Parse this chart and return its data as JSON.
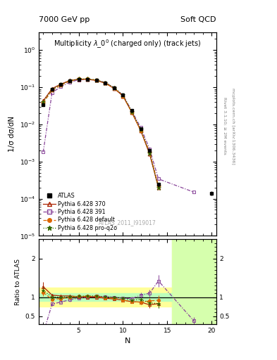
{
  "title_left": "7000 GeV pp",
  "title_right": "Soft QCD",
  "main_title": "Multiplicity $\\lambda\\_0^0$ (charged only) (track jets)",
  "watermark": "ATLAS_2011_I919017",
  "right_label_top": "Rivet 3.1.10; ≥ 2M events",
  "right_label_bot": "mcplots.cern.ch [arXiv:1306.3436]",
  "xlabel": "N",
  "ylabel_main": "1/σ dσ/dN",
  "ylabel_ratio": "Ratio to ATLAS",
  "xlim": [
    0.5,
    20.5
  ],
  "ylim_main": [
    1e-05,
    3.0
  ],
  "ylim_ratio": [
    0.3,
    2.5
  ],
  "atlas_x": [
    1,
    2,
    3,
    4,
    5,
    6,
    7,
    8,
    9,
    10,
    11,
    12,
    13,
    14,
    20
  ],
  "atlas_y": [
    0.034,
    0.088,
    0.118,
    0.148,
    0.163,
    0.163,
    0.153,
    0.132,
    0.098,
    0.063,
    0.024,
    0.0078,
    0.002,
    0.00024,
    0.00014
  ],
  "atlas_yerr": [
    0.003,
    0.005,
    0.006,
    0.007,
    0.007,
    0.007,
    0.006,
    0.005,
    0.004,
    0.003,
    0.001,
    0.0004,
    0.00015,
    3e-05,
    2e-05
  ],
  "p370_x": [
    1,
    2,
    3,
    4,
    5,
    6,
    7,
    8,
    9,
    10,
    11,
    12,
    13,
    14
  ],
  "p370_y": [
    0.043,
    0.092,
    0.122,
    0.152,
    0.165,
    0.163,
    0.153,
    0.128,
    0.093,
    0.058,
    0.021,
    0.0068,
    0.0016,
    0.0002
  ],
  "p391_x": [
    1,
    2,
    3,
    4,
    5,
    6,
    7,
    8,
    9,
    10,
    11,
    12,
    13,
    14,
    18
  ],
  "p391_y": [
    0.0018,
    0.072,
    0.103,
    0.138,
    0.158,
    0.163,
    0.156,
    0.133,
    0.098,
    0.061,
    0.023,
    0.0082,
    0.0022,
    0.00034,
    0.00015
  ],
  "pdef_x": [
    1,
    2,
    3,
    4,
    5,
    6,
    7,
    8,
    9,
    10,
    11,
    12,
    13,
    14
  ],
  "pdef_y": [
    0.038,
    0.083,
    0.113,
    0.148,
    0.166,
    0.166,
    0.156,
    0.13,
    0.095,
    0.058,
    0.021,
    0.0068,
    0.0018,
    0.00022
  ],
  "pq2o_x": [
    1,
    2,
    3,
    4,
    5,
    6,
    7,
    8,
    9,
    10,
    11,
    12,
    13,
    14
  ],
  "pq2o_y": [
    0.04,
    0.088,
    0.118,
    0.15,
    0.166,
    0.168,
    0.158,
    0.133,
    0.098,
    0.061,
    0.022,
    0.0073,
    0.0017,
    0.0002
  ],
  "ratio_p370_x": [
    1,
    2,
    3,
    4,
    5,
    6,
    7,
    8,
    9,
    10,
    11,
    12,
    13,
    14
  ],
  "ratio_p370_y": [
    1.27,
    1.05,
    1.03,
    1.03,
    1.01,
    1.0,
    1.0,
    0.97,
    0.95,
    0.92,
    0.88,
    0.87,
    0.8,
    0.83
  ],
  "ratio_p370_yerr": [
    0.12,
    0.04,
    0.03,
    0.03,
    0.02,
    0.02,
    0.02,
    0.02,
    0.02,
    0.03,
    0.04,
    0.06,
    0.08,
    0.12
  ],
  "ratio_p391_x": [
    1,
    2,
    3,
    4,
    5,
    6,
    7,
    8,
    9,
    10,
    11,
    12,
    13,
    14,
    18
  ],
  "ratio_p391_y": [
    0.052,
    0.82,
    0.87,
    0.93,
    0.97,
    1.0,
    1.02,
    1.01,
    1.0,
    0.97,
    0.96,
    1.05,
    1.1,
    1.42,
    0.38
  ],
  "ratio_p391_yerr": [
    0.05,
    0.05,
    0.04,
    0.04,
    0.03,
    0.03,
    0.03,
    0.03,
    0.03,
    0.04,
    0.05,
    0.07,
    0.09,
    0.15,
    0.1
  ],
  "ratio_pdef_x": [
    1,
    2,
    3,
    4,
    5,
    6,
    7,
    8,
    9,
    10,
    11,
    12,
    13,
    14
  ],
  "ratio_pdef_y": [
    1.12,
    0.94,
    0.96,
    1.0,
    1.02,
    1.02,
    1.02,
    0.98,
    0.97,
    0.92,
    0.88,
    0.87,
    0.9,
    0.92
  ],
  "ratio_pdef_yerr": [
    0.1,
    0.04,
    0.03,
    0.03,
    0.02,
    0.02,
    0.02,
    0.02,
    0.02,
    0.03,
    0.04,
    0.06,
    0.08,
    0.12
  ],
  "ratio_pq2o_x": [
    1,
    2,
    3,
    4,
    5,
    6,
    7,
    8,
    9,
    10,
    11,
    12,
    13,
    14
  ],
  "ratio_pq2o_y": [
    1.18,
    1.0,
    1.0,
    1.01,
    1.02,
    1.03,
    1.03,
    1.01,
    1.0,
    0.97,
    0.92,
    0.94,
    0.85,
    0.83
  ],
  "ratio_pq2o_yerr": [
    0.1,
    0.04,
    0.03,
    0.03,
    0.02,
    0.02,
    0.02,
    0.02,
    0.02,
    0.03,
    0.04,
    0.06,
    0.08,
    0.12
  ],
  "color_atlas": "#000000",
  "color_p370": "#aa2200",
  "color_p391": "#884499",
  "color_pdef": "#dd6600",
  "color_pq2o": "#336600",
  "bg_green_light": "#bbffbb",
  "bg_yellow": "#ffff99",
  "bg_green_dark": "#66ee66"
}
